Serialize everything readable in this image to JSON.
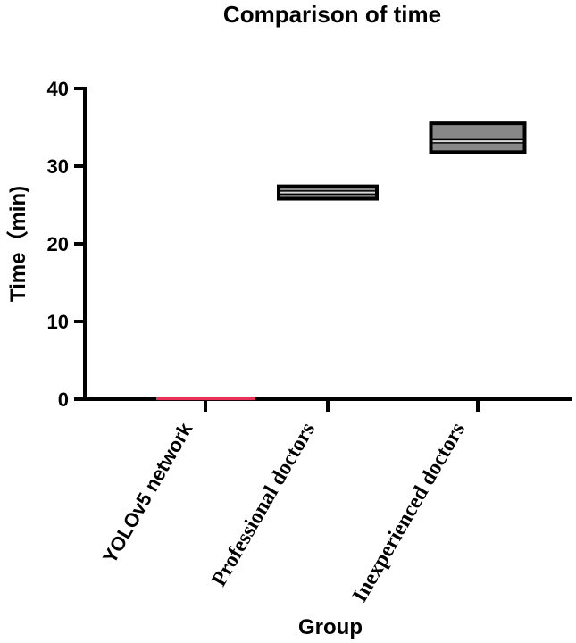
{
  "chart_data": {
    "type": "box",
    "title": "Comparison of time",
    "xlabel": "Group",
    "ylabel": "Time（min)",
    "ylim": [
      0,
      40
    ],
    "yticks": [
      0,
      10,
      20,
      30,
      40
    ],
    "categories": [
      "YOLOv5 network",
      "Professional  doctors",
      "Inexperienced  doctors"
    ],
    "boxes": [
      {
        "category": "YOLOv5 network",
        "low": 0.0,
        "median": 0.1,
        "high": 0.2,
        "color": "#e8325a"
      },
      {
        "category": "Professional  doctors",
        "low": 25.8,
        "median": 26.6,
        "high": 27.4,
        "color": "#888888"
      },
      {
        "category": "Inexperienced  doctors",
        "low": 31.8,
        "median": 33.2,
        "high": 35.5,
        "color": "#888888"
      }
    ],
    "grid": false,
    "legend": "none"
  }
}
